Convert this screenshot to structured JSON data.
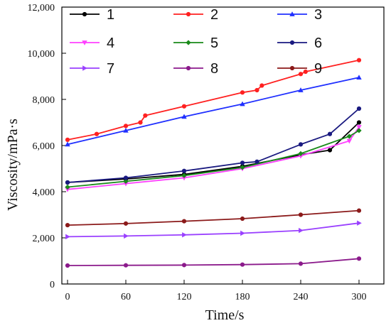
{
  "chart_data": {
    "type": "line",
    "title": "",
    "xlabel": "Time/s",
    "ylabel": "Viscosity/mPa·s",
    "xlim": [
      0,
      300
    ],
    "ylim": [
      0,
      12000
    ],
    "x_ticks": [
      "0",
      "60",
      "120",
      "180",
      "240",
      "300"
    ],
    "y_ticks": [
      "0",
      "2,000",
      "4,000",
      "6,000",
      "8,000",
      "10,000",
      "12,000"
    ],
    "grid": false,
    "legend_position": "top, inside plot area, 3 columns",
    "series": [
      {
        "name": "1",
        "color": "#000000",
        "marker": "circle",
        "points": [
          [
            0,
            4400
          ],
          [
            60,
            4550
          ],
          [
            120,
            4750
          ],
          [
            180,
            5100
          ],
          [
            240,
            5600
          ],
          [
            270,
            5800
          ],
          [
            300,
            7000
          ]
        ]
      },
      {
        "name": "2",
        "color": "#ff2020",
        "marker": "circle",
        "points": [
          [
            0,
            6250
          ],
          [
            30,
            6500
          ],
          [
            60,
            6850
          ],
          [
            75,
            7000
          ],
          [
            80,
            7300
          ],
          [
            120,
            7700
          ],
          [
            180,
            8300
          ],
          [
            195,
            8400
          ],
          [
            200,
            8600
          ],
          [
            240,
            9100
          ],
          [
            245,
            9200
          ],
          [
            300,
            9700
          ]
        ]
      },
      {
        "name": "3",
        "color": "#2030ff",
        "marker": "triangle",
        "points": [
          [
            0,
            6050
          ],
          [
            60,
            6650
          ],
          [
            120,
            7250
          ],
          [
            180,
            7800
          ],
          [
            240,
            8400
          ],
          [
            300,
            8950
          ]
        ]
      },
      {
        "name": "4",
        "color": "#ff40ff",
        "marker": "triangle-down",
        "points": [
          [
            0,
            4100
          ],
          [
            60,
            4350
          ],
          [
            120,
            4600
          ],
          [
            180,
            5000
          ],
          [
            240,
            5550
          ],
          [
            290,
            6200
          ],
          [
            300,
            6800
          ]
        ]
      },
      {
        "name": "5",
        "color": "#1a8a1a",
        "marker": "diamond",
        "points": [
          [
            0,
            4200
          ],
          [
            60,
            4450
          ],
          [
            120,
            4700
          ],
          [
            180,
            5050
          ],
          [
            240,
            5650
          ],
          [
            290,
            6400
          ],
          [
            300,
            6650
          ]
        ]
      },
      {
        "name": "6",
        "color": "#1a1a80",
        "marker": "circle",
        "points": [
          [
            0,
            4400
          ],
          [
            60,
            4600
          ],
          [
            120,
            4900
          ],
          [
            180,
            5250
          ],
          [
            195,
            5300
          ],
          [
            240,
            6050
          ],
          [
            270,
            6500
          ],
          [
            300,
            7600
          ]
        ]
      },
      {
        "name": "7",
        "color": "#9a40ff",
        "marker": "triangle-right",
        "points": [
          [
            0,
            2050
          ],
          [
            60,
            2080
          ],
          [
            120,
            2130
          ],
          [
            180,
            2200
          ],
          [
            240,
            2320
          ],
          [
            300,
            2640
          ]
        ]
      },
      {
        "name": "8",
        "color": "#8b1a8b",
        "marker": "circle",
        "points": [
          [
            0,
            800
          ],
          [
            60,
            810
          ],
          [
            120,
            820
          ],
          [
            180,
            840
          ],
          [
            240,
            880
          ],
          [
            300,
            1100
          ]
        ]
      },
      {
        "name": "9",
        "color": "#8b1a1a",
        "marker": "circle",
        "points": [
          [
            0,
            2550
          ],
          [
            60,
            2620
          ],
          [
            120,
            2720
          ],
          [
            180,
            2830
          ],
          [
            240,
            3000
          ],
          [
            300,
            3180
          ]
        ]
      }
    ]
  }
}
